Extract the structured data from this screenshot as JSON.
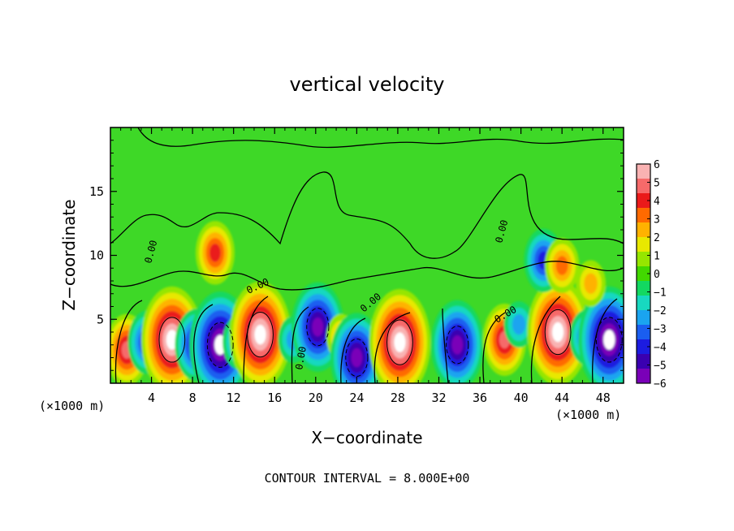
{
  "chart_data": {
    "type": "heatmap",
    "title": "vertical velocity",
    "xlabel": "X−coordinate",
    "ylabel": "Z−coordinate",
    "x_unit_left": "(×1000 m)",
    "x_unit_right": "(×1000 m)",
    "footer": "CONTOUR INTERVAL = 8.000E+00",
    "xlim": [
      0,
      50
    ],
    "ylim": [
      0,
      20
    ],
    "x_ticks": [
      4,
      8,
      12,
      16,
      20,
      24,
      28,
      32,
      36,
      40,
      44,
      48
    ],
    "y_ticks": [
      5,
      10,
      15
    ],
    "colorbar": {
      "min": -6,
      "max": 6,
      "ticks": [
        "6",
        "5",
        "4",
        "3",
        "2",
        "1",
        "0",
        "−1",
        "−2",
        "−3",
        "−4",
        "−5",
        "−6"
      ],
      "colors": [
        "#f9b2b2",
        "#f66a6a",
        "#ea1a1a",
        "#ff6a00",
        "#ffb200",
        "#e8e800",
        "#96e600",
        "#42d800",
        "#13d861",
        "#18d8c0",
        "#1aa4f0",
        "#1a5ef0",
        "#1c1ce0",
        "#3a00b0",
        "#7a00b8"
      ]
    },
    "contour_labels": [
      "0.00",
      "0.00",
      "0.00",
      "0.00",
      "0.00",
      "0.00"
    ],
    "cells": [
      {
        "x": 1.6,
        "z": 2.6,
        "w": 6
      },
      {
        "x": 3.6,
        "z": 3.2,
        "w": -5
      },
      {
        "x": 6.0,
        "z": 3.4,
        "w": 10
      },
      {
        "x": 8.4,
        "z": 3.0,
        "w": -6
      },
      {
        "x": 10.7,
        "z": 3.0,
        "w": -10
      },
      {
        "x": 12.6,
        "z": 3.2,
        "w": -4
      },
      {
        "x": 14.6,
        "z": 3.8,
        "w": 10
      },
      {
        "x": 17.8,
        "z": 3.4,
        "w": -3
      },
      {
        "x": 20.2,
        "z": 4.4,
        "w": -8
      },
      {
        "x": 22.5,
        "z": 3.6,
        "w": 3
      },
      {
        "x": 24.0,
        "z": 2.0,
        "w": -8
      },
      {
        "x": 28.2,
        "z": 3.2,
        "w": 10
      },
      {
        "x": 33.8,
        "z": 3.0,
        "w": -8
      },
      {
        "x": 38.4,
        "z": 3.4,
        "w": 6
      },
      {
        "x": 39.8,
        "z": 4.6,
        "w": -3
      },
      {
        "x": 43.6,
        "z": 4.0,
        "w": 10
      },
      {
        "x": 46.4,
        "z": 3.6,
        "w": -4
      },
      {
        "x": 48.6,
        "z": 3.4,
        "w": -10
      },
      {
        "x": 10.2,
        "z": 10.2,
        "w": 5
      },
      {
        "x": 42.2,
        "z": 9.6,
        "w": -5
      },
      {
        "x": 44.0,
        "z": 9.2,
        "w": 4
      },
      {
        "x": 46.8,
        "z": 7.8,
        "w": 3
      }
    ]
  }
}
